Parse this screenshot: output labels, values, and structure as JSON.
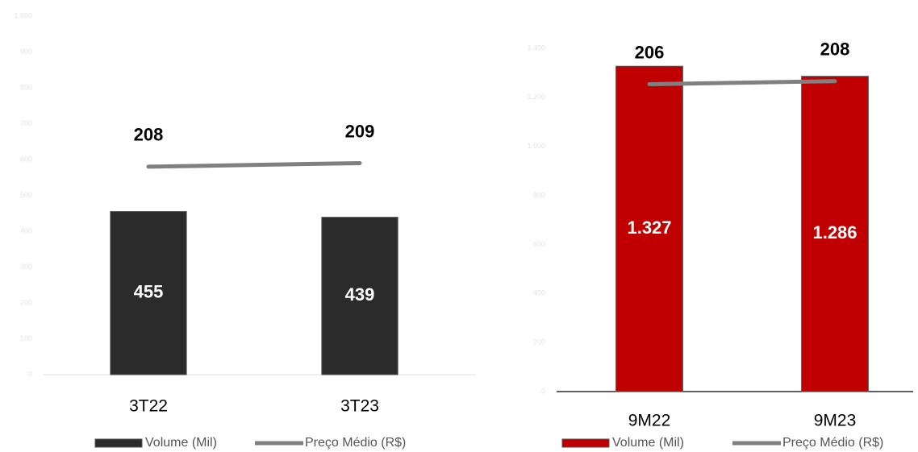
{
  "chart_data": [
    {
      "type": "bar",
      "categories": [
        "3T22",
        "3T23"
      ],
      "series": [
        {
          "name": "Volume (Mil)",
          "type": "bar",
          "color": "#2b2b2b",
          "values": [
            455,
            439
          ]
        },
        {
          "name": "Preço Médio (R$)",
          "type": "line",
          "color": "#808080",
          "values": [
            208,
            209
          ],
          "axis": "y2"
        }
      ],
      "ylim": [
        0,
        1000
      ],
      "yticks": [
        0,
        100,
        200,
        300,
        400,
        500,
        600,
        700,
        800,
        900,
        {
          "value": 1000,
          "label": "1.000"
        }
      ],
      "y2lim": [
        150,
        250
      ],
      "grid": false
    },
    {
      "type": "bar",
      "categories": [
        "9M22",
        "9M23"
      ],
      "series": [
        {
          "name": "Volume (Mil)",
          "type": "bar",
          "color": "#c00000",
          "values": [
            1327,
            1286
          ],
          "value_labels": [
            "1.327",
            "1.286"
          ]
        },
        {
          "name": "Preço Médio (R$)",
          "type": "line",
          "color": "#808080",
          "values": [
            206,
            208
          ],
          "axis": "y2"
        }
      ],
      "ylim": [
        0,
        1400
      ],
      "yticks": [
        0,
        200,
        400,
        600,
        800,
        {
          "value": 1000,
          "label": "1.000"
        },
        {
          "value": 1200,
          "label": "1.200"
        },
        {
          "value": 1400,
          "label": "1.400"
        }
      ],
      "y2lim": [
        0,
        230
      ],
      "grid": false
    }
  ]
}
